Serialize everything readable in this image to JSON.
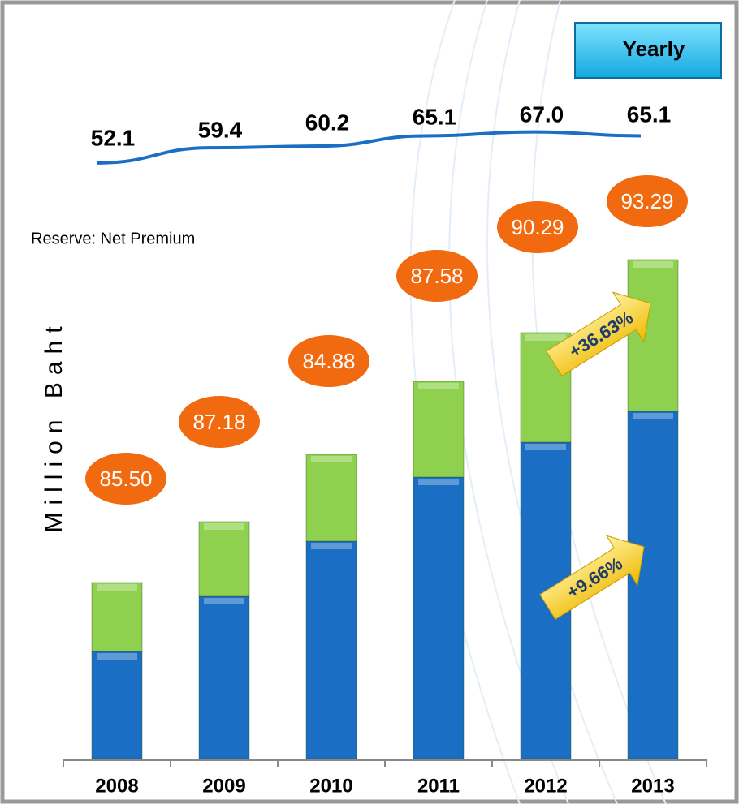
{
  "chart_data": {
    "type": "bar",
    "stacked": true,
    "button": "Yearly",
    "subtitle": "Reserve: Net Premium",
    "y_label": "Million Baht",
    "categories": [
      "2008",
      "2009",
      "2010",
      "2011",
      "2012",
      "2013"
    ],
    "series": [
      {
        "color": "#1a6fc4",
        "values": [
          132,
          200,
          268,
          347,
          390,
          428
        ]
      },
      {
        "color": "#8fd14f",
        "values": [
          85,
          92,
          107,
          118,
          135,
          187
        ]
      }
    ],
    "ylim": [
      0,
      700
    ],
    "line": {
      "color": "#1a6fc4",
      "ylim": [
        40,
        75
      ],
      "values": [
        52.1,
        59.4,
        60.2,
        65.1,
        67.0,
        65.1
      ],
      "value_labels": [
        "52.1",
        "59.4",
        "60.2",
        "65.1",
        "67.0",
        "65.1"
      ]
    },
    "ratios": {
      "color": "#f26a10",
      "values": [
        85.5,
        87.18,
        84.88,
        87.58,
        90.29,
        93.29
      ],
      "value_labels": [
        "85.50",
        "87.18",
        "84.88",
        "87.58",
        "90.29",
        "93.29"
      ]
    },
    "annotations": [
      "+36.63%",
      "+9.66%"
    ]
  }
}
